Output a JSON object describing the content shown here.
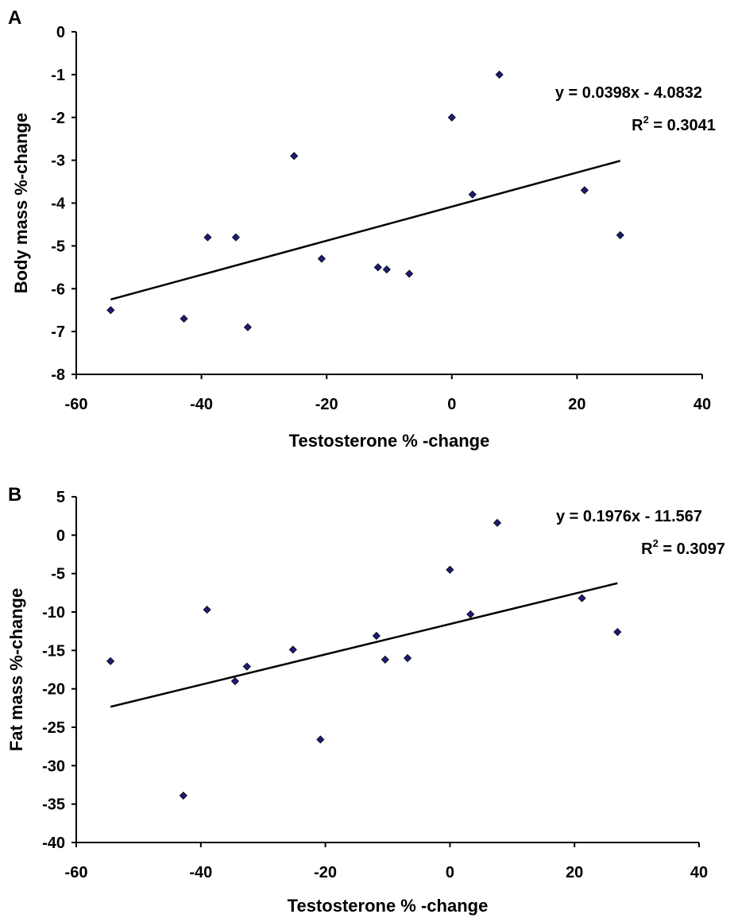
{
  "chart_data": [
    {
      "type": "scatter",
      "panel": "A",
      "xlabel": "Testosterone % -change",
      "ylabel": "Body mass %-change",
      "xlim": [
        -60,
        40
      ],
      "ylim": [
        -8,
        0
      ],
      "x_ticks": [
        -60,
        -40,
        -20,
        0,
        20,
        40
      ],
      "y_ticks": [
        0,
        -1,
        -2,
        -3,
        -4,
        -5,
        -6,
        -7,
        -8
      ],
      "marker_color": "#1c1c78",
      "grid": false,
      "series": [
        {
          "x": [
            -54.5,
            -42.8,
            -39.0,
            -34.5,
            -32.6,
            -25.2,
            -20.8,
            -11.8,
            -10.4,
            -6.8,
            0.0,
            3.3,
            7.6,
            21.2,
            26.9
          ],
          "y": [
            -6.5,
            -6.7,
            -4.8,
            -4.8,
            -6.9,
            -2.9,
            -5.3,
            -5.5,
            -5.55,
            -5.65,
            -2.0,
            -3.8,
            -1.0,
            -3.7,
            -4.75
          ]
        }
      ],
      "trendline": {
        "slope": 0.0398,
        "intercept": -4.0832,
        "x_range": [
          -54.5,
          26.9
        ]
      },
      "equation": "y = 0.0398x - 4.0832",
      "r2_label": "R",
      "r2_exp": "2",
      "r2_value": " = 0.3041"
    },
    {
      "type": "scatter",
      "panel": "B",
      "xlabel": "Testosterone % -change",
      "ylabel": "Fat mass %-change",
      "xlim": [
        -60,
        40
      ],
      "ylim": [
        -40,
        5
      ],
      "x_ticks": [
        -60,
        -40,
        -20,
        0,
        20,
        40
      ],
      "y_ticks": [
        5,
        0,
        -5,
        -10,
        -15,
        -20,
        -25,
        -30,
        -35,
        -40
      ],
      "marker_color": "#1c1c78",
      "grid": false,
      "series": [
        {
          "x": [
            -54.5,
            -42.8,
            -39.0,
            -34.5,
            -32.6,
            -25.2,
            -20.8,
            -11.8,
            -10.4,
            -6.8,
            0.0,
            3.3,
            7.6,
            21.2,
            26.9
          ],
          "y": [
            -16.4,
            -33.9,
            -9.7,
            -19.0,
            -17.1,
            -14.9,
            -26.6,
            -13.1,
            -16.2,
            -16.0,
            -4.5,
            -10.3,
            1.6,
            -8.2,
            -12.6
          ]
        }
      ],
      "trendline": {
        "slope": 0.1976,
        "intercept": -11.567,
        "x_range": [
          -54.5,
          26.9
        ]
      },
      "equation": "y = 0.1976x - 11.567",
      "r2_label": "R",
      "r2_exp": "2",
      "r2_value": " = 0.3097"
    }
  ]
}
